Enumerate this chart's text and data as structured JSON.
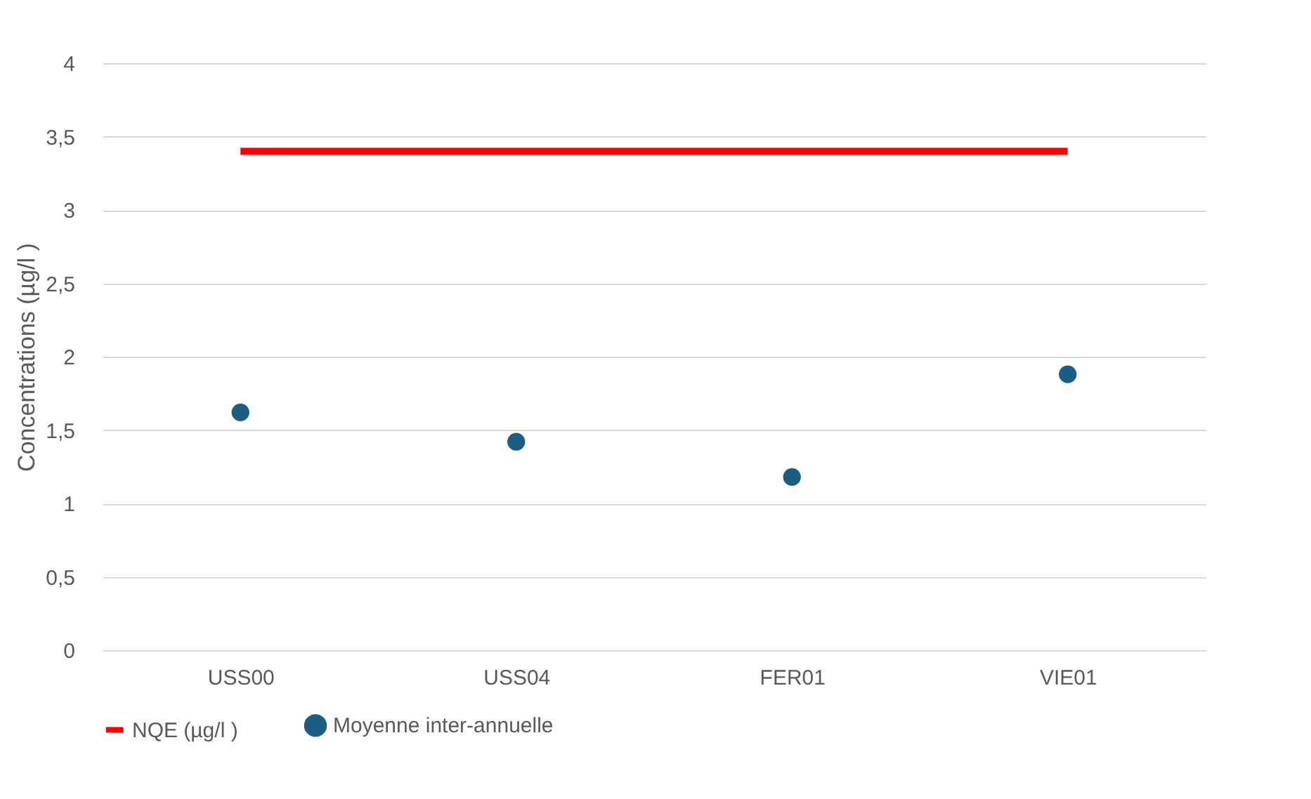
{
  "chart_data": {
    "type": "scatter",
    "ylabel": "Concentrations (µg/l )",
    "categories": [
      "USS00",
      "USS04",
      "FER01",
      "VIE01"
    ],
    "series": [
      {
        "name": "NQE (µg/l )",
        "type": "line",
        "color": "#ff0000",
        "values": [
          3.4,
          3.4,
          3.4,
          3.4
        ]
      },
      {
        "name": "Moyenne inter-annuelle",
        "marker": "circle",
        "color": "#1b5e82",
        "values": [
          1.62,
          1.42,
          1.18,
          1.88
        ]
      }
    ],
    "ylim": [
      0,
      4
    ],
    "yticks": [
      0,
      {
        "value": 0.5,
        "label": "0,5"
      },
      1,
      {
        "value": 1.5,
        "label": "1,5"
      },
      2,
      {
        "value": 2.5,
        "label": "2,5"
      },
      3,
      {
        "value": 3.5,
        "label": "3,5"
      },
      4
    ],
    "grid": "y",
    "legend": "bottom"
  }
}
